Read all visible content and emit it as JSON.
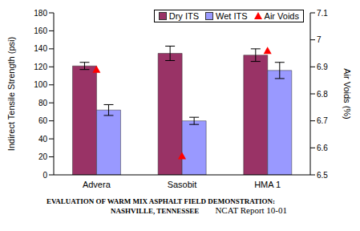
{
  "chart_data": {
    "type": "bar",
    "categories": [
      "Advera",
      "Sasobit",
      "HMA 1"
    ],
    "series": [
      {
        "name": "Dry ITS",
        "color": "#993366",
        "values": [
          121,
          135,
          133
        ],
        "error": [
          4,
          8,
          7
        ]
      },
      {
        "name": "Wet ITS",
        "color": "#9999ff",
        "values": [
          72,
          60,
          116
        ],
        "error": [
          6,
          4,
          9
        ]
      },
      {
        "name": "Air Voids",
        "type": "scatter",
        "axis": "y2",
        "color": "#ff0000",
        "marker": "triangle",
        "values": [
          6.89,
          6.57,
          6.96
        ]
      }
    ],
    "y_label": "Indirect Tensile Strength (psi)",
    "y2_label": "Air Voids (%)",
    "ylim": [
      0,
      180
    ],
    "yticks": [
      0,
      20,
      40,
      60,
      80,
      100,
      120,
      140,
      160,
      180
    ],
    "y2lim": [
      6.5,
      7.1
    ],
    "y2ticks": [
      6.5,
      6.6,
      6.7,
      6.8,
      6.9,
      7,
      7.1
    ],
    "grid": false,
    "legend": "upper right",
    "caption": [
      "EVALUATION OF WARM MIX ASPHALT FIELD DEMONSTRATION:",
      "NASHVILLE, TENNESSEE"
    ],
    "source": "NCAT Report 10-01"
  }
}
